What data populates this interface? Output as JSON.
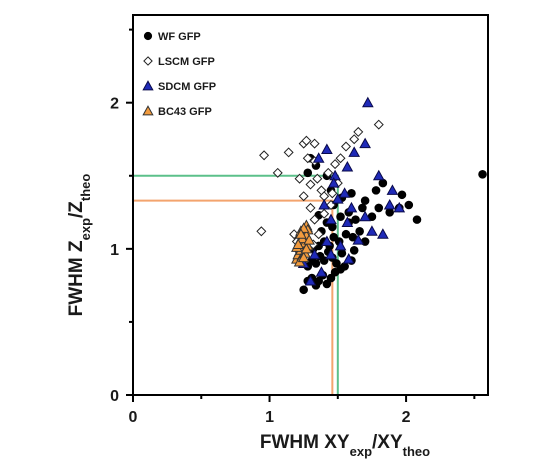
{
  "chart_data": {
    "type": "scatter",
    "xlabel": {
      "main": "FWHM XY",
      "sub1": "exp",
      "mid": "/XY",
      "sub2": "theo"
    },
    "ylabel": {
      "main": "FWHM Z",
      "sub1": "exp",
      "mid": "/Z",
      "sub2": "theo"
    },
    "xlim": [
      0,
      2.6
    ],
    "ylim": [
      0,
      2.6
    ],
    "x_ticks": [
      0,
      1,
      2
    ],
    "x_tick_labels": [
      "0",
      "1",
      "2"
    ],
    "y_ticks": [
      0,
      1,
      2
    ],
    "y_tick_labels": [
      "0",
      "1",
      "2"
    ],
    "legend_position": "top-left",
    "grid": false,
    "series": [
      {
        "name": "WF GFP",
        "marker": "circle",
        "fill": "#000000",
        "stroke": "#000000",
        "points": [
          [
            1.25,
            0.72
          ],
          [
            1.28,
            0.78
          ],
          [
            1.31,
            0.8
          ],
          [
            1.34,
            0.75
          ],
          [
            1.36,
            0.78
          ],
          [
            1.39,
            0.82
          ],
          [
            1.42,
            0.76
          ],
          [
            1.45,
            0.8
          ],
          [
            1.48,
            0.84
          ],
          [
            1.52,
            0.86
          ],
          [
            1.28,
            0.88
          ],
          [
            1.31,
            0.92
          ],
          [
            1.34,
            0.9
          ],
          [
            1.37,
            0.95
          ],
          [
            1.4,
            0.92
          ],
          [
            1.43,
            0.98
          ],
          [
            1.46,
            0.94
          ],
          [
            1.49,
            0.9
          ],
          [
            1.55,
            0.88
          ],
          [
            1.6,
            0.92
          ],
          [
            1.32,
            1.0
          ],
          [
            1.36,
            1.02
          ],
          [
            1.4,
            1.05
          ],
          [
            1.44,
            1.02
          ],
          [
            1.47,
            1.08
          ],
          [
            1.51,
            1.05
          ],
          [
            1.56,
            1.1
          ],
          [
            1.61,
            1.08
          ],
          [
            1.66,
            1.12
          ],
          [
            1.7,
            1.05
          ],
          [
            1.38,
            1.12
          ],
          [
            1.42,
            1.18
          ],
          [
            1.46,
            1.15
          ],
          [
            1.52,
            1.22
          ],
          [
            1.58,
            1.25
          ],
          [
            1.63,
            1.2
          ],
          [
            1.68,
            1.28
          ],
          [
            1.75,
            1.22
          ],
          [
            1.8,
            1.28
          ],
          [
            1.88,
            1.25
          ],
          [
            1.47,
            1.3
          ],
          [
            1.53,
            1.35
          ],
          [
            1.6,
            1.38
          ],
          [
            1.7,
            1.33
          ],
          [
            1.78,
            1.4
          ],
          [
            1.83,
            1.45
          ],
          [
            1.97,
            1.37
          ],
          [
            2.02,
            1.3
          ],
          [
            2.08,
            1.2
          ],
          [
            1.95,
            1.28
          ],
          [
            1.28,
            1.52
          ],
          [
            1.34,
            1.57
          ],
          [
            1.42,
            1.5
          ],
          [
            1.3,
            1.62
          ],
          [
            1.58,
            1.18
          ],
          [
            1.62,
            0.99
          ],
          [
            1.53,
            0.97
          ],
          [
            1.45,
            1.4
          ],
          [
            1.36,
            1.23
          ],
          [
            2.56,
            1.51
          ]
        ]
      },
      {
        "name": "LSCM GFP",
        "marker": "diamond",
        "fill": "#ffffff",
        "stroke": "#222222",
        "points": [
          [
            0.94,
            1.12
          ],
          [
            1.06,
            1.52
          ],
          [
            0.96,
            1.64
          ],
          [
            1.14,
            1.66
          ],
          [
            1.25,
            1.72
          ],
          [
            1.27,
            1.74
          ],
          [
            1.28,
            1.62
          ],
          [
            1.33,
            1.6
          ],
          [
            1.22,
            1.48
          ],
          [
            1.3,
            1.44
          ],
          [
            1.38,
            1.4
          ],
          [
            1.43,
            1.52
          ],
          [
            1.35,
            1.48
          ],
          [
            1.4,
            1.36
          ],
          [
            1.45,
            1.3
          ],
          [
            1.25,
            1.36
          ],
          [
            1.3,
            1.28
          ],
          [
            1.33,
            1.2
          ],
          [
            1.28,
            1.12
          ],
          [
            1.36,
            1.1
          ],
          [
            1.25,
            1.06
          ],
          [
            1.32,
            1.03
          ],
          [
            1.22,
            0.98
          ],
          [
            1.2,
            1.05
          ],
          [
            1.18,
            1.1
          ],
          [
            1.4,
            1.24
          ],
          [
            1.46,
            1.38
          ],
          [
            1.5,
            1.45
          ],
          [
            1.56,
            1.7
          ],
          [
            1.62,
            1.75
          ],
          [
            1.8,
            1.85
          ],
          [
            1.65,
            1.8
          ],
          [
            1.33,
            1.72
          ],
          [
            1.48,
            1.58
          ],
          [
            1.52,
            1.62
          ]
        ]
      },
      {
        "name": "SDCM GFP",
        "marker": "triangle",
        "fill": "#1f2ab8",
        "stroke": "#0a0a4a",
        "points": [
          [
            1.3,
            0.78
          ],
          [
            1.38,
            0.84
          ],
          [
            1.45,
            0.96
          ],
          [
            1.52,
            1.02
          ],
          [
            1.58,
            0.93
          ],
          [
            1.65,
            1.06
          ],
          [
            1.7,
            1.22
          ],
          [
            1.75,
            1.12
          ],
          [
            1.83,
            1.1
          ],
          [
            1.88,
            1.3
          ],
          [
            1.95,
            1.28
          ],
          [
            1.48,
            1.5
          ],
          [
            1.57,
            1.56
          ],
          [
            1.62,
            1.66
          ],
          [
            1.7,
            1.72
          ],
          [
            1.72,
            2.0
          ],
          [
            1.5,
            1.34
          ],
          [
            1.45,
            1.2
          ],
          [
            1.4,
            1.3
          ],
          [
            1.36,
            1.62
          ],
          [
            1.42,
            1.68
          ],
          [
            1.47,
            1.45
          ],
          [
            1.55,
            1.38
          ],
          [
            1.6,
            1.28
          ],
          [
            1.8,
            1.5
          ],
          [
            1.9,
            1.4
          ],
          [
            1.25,
            0.9
          ],
          [
            1.33,
            0.96
          ],
          [
            1.42,
            1.05
          ],
          [
            1.57,
            1.18
          ]
        ]
      },
      {
        "name": "BC43 GFP",
        "marker": "triangle",
        "fill": "#f29b3e",
        "stroke": "#333333",
        "points": [
          [
            1.2,
            0.93
          ],
          [
            1.22,
            0.98
          ],
          [
            1.24,
            1.02
          ],
          [
            1.26,
            1.08
          ],
          [
            1.23,
            1.12
          ],
          [
            1.27,
            1.16
          ],
          [
            1.21,
            0.96
          ],
          [
            1.25,
            1.0
          ],
          [
            1.22,
            1.05
          ],
          [
            1.28,
            1.13
          ],
          [
            1.24,
            0.95
          ],
          [
            1.26,
            1.04
          ],
          [
            1.23,
            0.99
          ],
          [
            1.2,
            1.01
          ],
          [
            1.27,
            1.09
          ],
          [
            1.25,
            1.14
          ],
          [
            1.22,
            0.91
          ],
          [
            1.26,
            0.97
          ],
          [
            1.24,
            1.07
          ],
          [
            1.28,
            1.02
          ],
          [
            1.21,
            1.03
          ],
          [
            1.25,
            0.94
          ],
          [
            1.23,
            1.1
          ],
          [
            1.27,
            1.0
          ],
          [
            1.29,
            1.06
          ]
        ]
      }
    ],
    "reference_lines": [
      {
        "color": "#5cc08a",
        "x": 1.5,
        "y": 1.5
      },
      {
        "color": "#f3a46e",
        "x": 1.46,
        "y": 1.33
      }
    ]
  }
}
